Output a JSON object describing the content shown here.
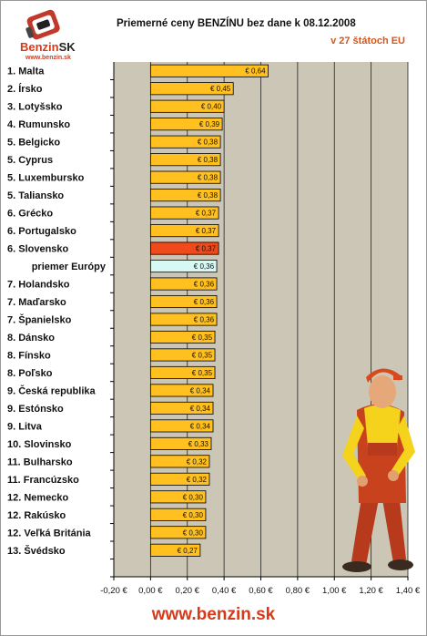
{
  "header": {
    "title": "Priemerné ceny BENZÍNU bez dane k 08.12.2008",
    "subtitle": "v 27 štátoch EU",
    "logo_name": "Benzin",
    "logo_suffix": "SK",
    "logo_url": "www.benzin.sk"
  },
  "footer": {
    "url": "www.benzin.sk"
  },
  "colors": {
    "bar_default": "#ffc020",
    "bar_highlight": "#f04a1a",
    "bar_average": "#d8f8f4",
    "label_highlight": "#d6561a",
    "label_average": "#2aa6d8",
    "plot_bg": "#cbc6b5"
  },
  "chart_data": {
    "type": "bar",
    "orientation": "horizontal",
    "title": "Priemerné ceny BENZÍNU bez dane k 08.12.2008",
    "subtitle": "v 27 štátoch EU",
    "xlim": [
      -0.2,
      1.4
    ],
    "xticks": [
      -0.2,
      0,
      0.2,
      0.4,
      0.6,
      0.8,
      1.0,
      1.2,
      1.4
    ],
    "xtick_labels": [
      "-0,20 €",
      "0,00 €",
      "0,20 €",
      "0,40 €",
      "0,60 €",
      "0,80 €",
      "1,00 €",
      "1,20 €",
      "1,40 €"
    ],
    "grid": "vertical",
    "categories": [
      "1. Malta",
      "2. Írsko",
      "3. Lotyšsko",
      "4. Rumunsko",
      "5. Belgicko",
      "5. Cyprus",
      "5. Luxembursko",
      "5. Taliansko",
      "6. Grécko",
      "6. Portugalsko",
      "6. Slovensko",
      "priemer Európy",
      "7. Holandsko",
      "7. Maďarsko",
      "7. Španielsko",
      "8. Dánsko",
      "8. Fínsko",
      "8. Poľsko",
      "9. Česká republika",
      "9. Estónsko",
      "9. Litva",
      "10. Slovinsko",
      "11. Bulharsko",
      "11. Francúzsko",
      "12. Nemecko",
      "12. Rakúsko",
      "12. Veľká Británia",
      "13. Švédsko",
      ""
    ],
    "values": [
      0.64,
      0.45,
      0.4,
      0.39,
      0.38,
      0.38,
      0.38,
      0.38,
      0.37,
      0.37,
      0.37,
      0.36,
      0.36,
      0.36,
      0.36,
      0.35,
      0.35,
      0.35,
      0.34,
      0.34,
      0.34,
      0.33,
      0.32,
      0.32,
      0.3,
      0.3,
      0.3,
      0.27,
      null
    ],
    "value_labels": [
      "€ 0,64",
      "€ 0,45",
      "€ 0,40",
      "€ 0,39",
      "€ 0,38",
      "€ 0,38",
      "€ 0,38",
      "€ 0,38",
      "€ 0,37",
      "€ 0,37",
      "€ 0,37",
      "€ 0,36",
      "€ 0,36",
      "€ 0,36",
      "€ 0,36",
      "€ 0,35",
      "€ 0,35",
      "€ 0,35",
      "€ 0,34",
      "€ 0,34",
      "€ 0,34",
      "€ 0,33",
      "€ 0,32",
      "€ 0,32",
      "€ 0,30",
      "€ 0,30",
      "€ 0,30",
      "€ 0,27",
      ""
    ],
    "highlight_index": 10,
    "average_index": 11
  }
}
